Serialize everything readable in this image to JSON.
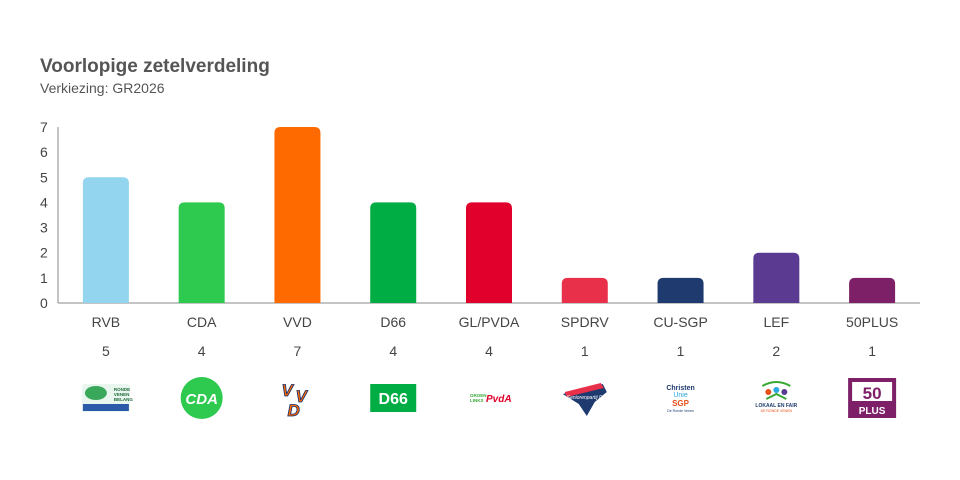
{
  "header": {
    "title": "Voorlopige zetelverdeling",
    "subtitle": "Verkiezing: GR2026"
  },
  "chart_data": {
    "type": "bar",
    "title": "Voorlopige zetelverdeling",
    "subtitle": "Verkiezing: GR2026",
    "categories": [
      "RVB",
      "CDA",
      "VVD",
      "D66",
      "GL/PVDA",
      "SPDRV",
      "CU-SGP",
      "LEF",
      "50PLUS"
    ],
    "values": [
      5,
      4,
      7,
      4,
      4,
      1,
      1,
      2,
      1
    ],
    "colors": [
      "#93d4ef",
      "#2ec94f",
      "#ff6a00",
      "#00ad45",
      "#e0002b",
      "#e8304a",
      "#1e3a6e",
      "#5b3a92",
      "#7d2068"
    ],
    "ylim": [
      0,
      7
    ],
    "yticks": [
      0,
      1,
      2,
      3,
      4,
      5,
      6,
      7
    ],
    "xlabel": "",
    "ylabel": "",
    "grid": false,
    "logos": [
      {
        "icon": "rvb-logo-icon",
        "text": "RONDE VENEN BELANG"
      },
      {
        "icon": "cda-logo-icon",
        "text": "CDA"
      },
      {
        "icon": "vvd-logo-icon",
        "text": "VVD"
      },
      {
        "icon": "d66-logo-icon",
        "text": "D66"
      },
      {
        "icon": "groenlinks-pvda-logo-icon",
        "text": "GROEN LINKS PvdA"
      },
      {
        "icon": "spdrv-logo-icon",
        "text": "Seniorenpartij DRV"
      },
      {
        "icon": "christenunie-sgp-logo-icon",
        "text": "ChristenUnie SGP"
      },
      {
        "icon": "lokaal-en-fair-logo-icon",
        "text": "LOKAAL EN FAIR"
      },
      {
        "icon": "50plus-logo-icon",
        "text": "50 PLUS"
      }
    ]
  }
}
